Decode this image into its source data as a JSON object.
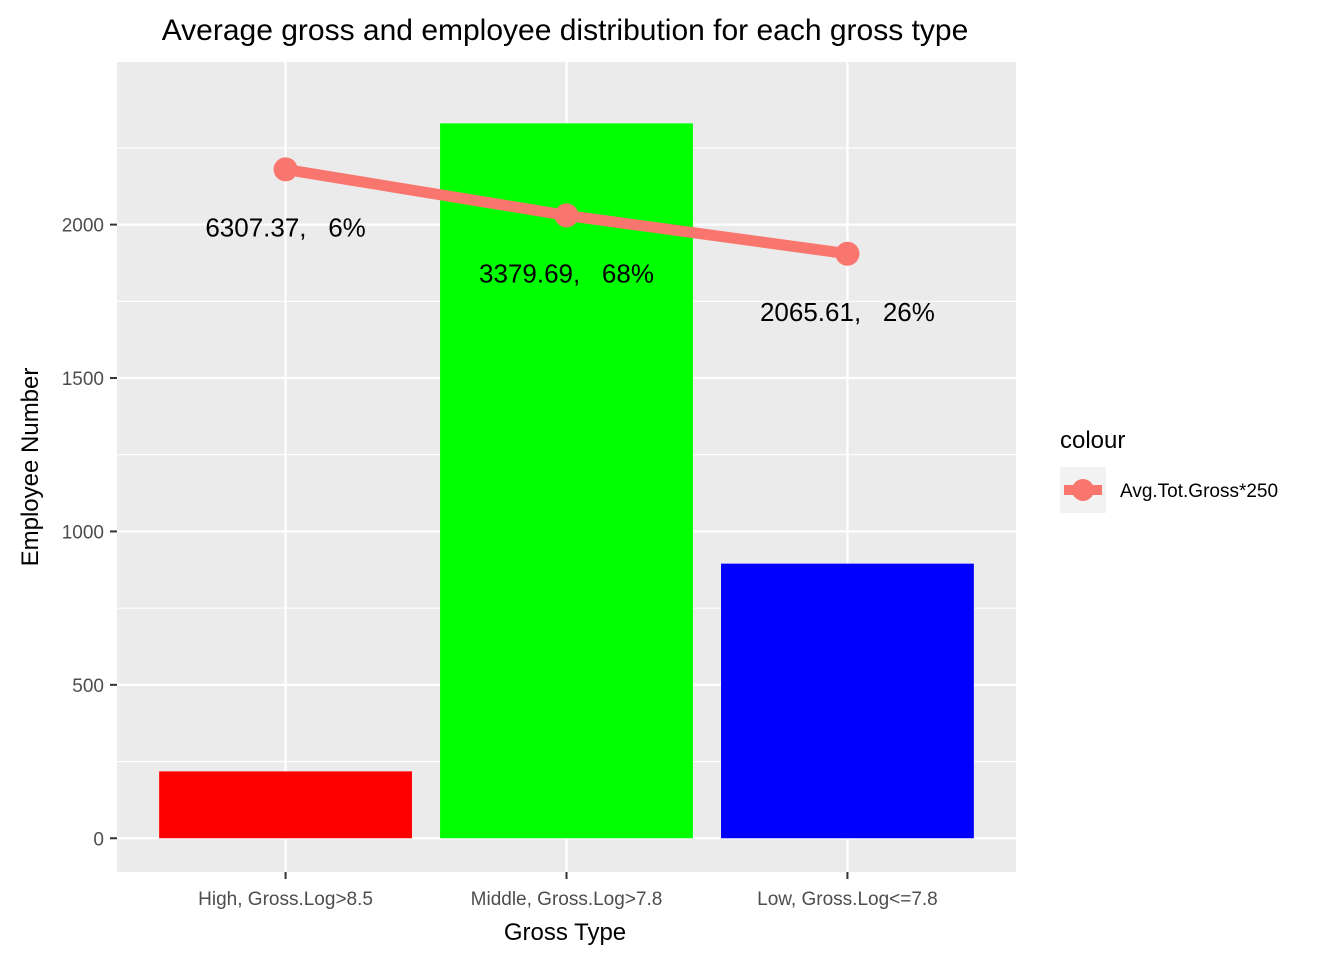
{
  "chart_data": {
    "type": "bar",
    "title": "Average gross and employee distribution for each gross type",
    "xlabel": "Gross Type",
    "ylabel": "Employee Number",
    "ylim": [
      -110,
      2530
    ],
    "yticks": [
      0,
      500,
      1000,
      1500,
      2000
    ],
    "ytick_labels": [
      "0",
      "500",
      "1000",
      "1500",
      "2000"
    ],
    "grid": true,
    "categories": [
      "High, Gross.Log>8.5",
      "Middle, Gross.Log>7.8",
      "Low, Gross.Log<=7.8"
    ],
    "bars": {
      "name": "Employee Number",
      "values": [
        218,
        2330,
        895
      ],
      "colors": [
        "#FF0000",
        "#00FF00",
        "#0000FF"
      ]
    },
    "line": {
      "name": "Avg.Tot.Gross*250",
      "values": [
        2180,
        2030,
        1905
      ],
      "color": "#F8766D"
    },
    "data_labels": [
      "6307.37,   6%",
      "3379.69,   68%",
      "2065.61,   26%"
    ],
    "legend": {
      "title": "colour",
      "entries": [
        "Avg.Tot.Gross*250"
      ],
      "position": "right"
    },
    "panel_color": "#EBEBEB"
  }
}
